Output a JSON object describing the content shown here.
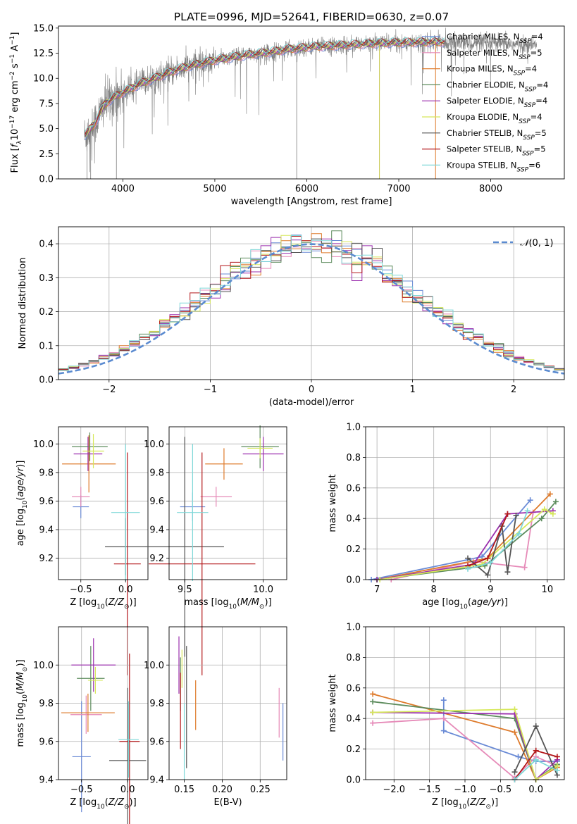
{
  "figure": {
    "title": "PLATE=0996, MJD=52641, FIBERID=0630, z=0.07",
    "models": [
      {
        "name": "Chabrier MILES",
        "nssp": 4,
        "color": "#6a8bd6"
      },
      {
        "name": "Salpeter MILES",
        "nssp": 5,
        "color": "#e68ab8"
      },
      {
        "name": "Kroupa MILES",
        "nssp": 4,
        "color": "#de7b2c"
      },
      {
        "name": "Chabrier ELODIE",
        "nssp": 4,
        "color": "#5d8c5d"
      },
      {
        "name": "Salpeter ELODIE",
        "nssp": 4,
        "color": "#9b2fae"
      },
      {
        "name": "Kroupa ELODIE",
        "nssp": 4,
        "color": "#d6e85a"
      },
      {
        "name": "Chabrier STELIB",
        "nssp": 5,
        "color": "#555555"
      },
      {
        "name": "Salpeter STELIB",
        "nssp": 5,
        "color": "#b3171a"
      },
      {
        "name": "Kroupa STELIB",
        "nssp": 6,
        "color": "#7fd8d8"
      }
    ],
    "legend_nssp_label": "N",
    "legend_nssp_sub": "SSP"
  },
  "chart_data": [
    {
      "id": "spectrum",
      "type": "line",
      "xlabel": "wavelength [Angstrom, rest frame]",
      "ylabel": "Flux [f_λ 10^-17 erg cm^-2 s^-1 A^-1]",
      "xlim": [
        3300,
        8800
      ],
      "ylim": [
        0,
        15.2
      ],
      "xticks": [
        4000,
        5000,
        6000,
        7000,
        8000
      ],
      "yticks": [
        0.0,
        2.5,
        5.0,
        7.5,
        10.0,
        12.5,
        15.0
      ],
      "ytick_labels": [
        "0.0",
        "2.5",
        "5.0",
        "7.5",
        "10.0",
        "12.5",
        "15.0"
      ],
      "grid": false,
      "legend": "right",
      "data_color": "#7f7f7f",
      "continuum": [
        [
          3580,
          4.2
        ],
        [
          3700,
          5.6
        ],
        [
          3800,
          7.4
        ],
        [
          3900,
          8.1
        ],
        [
          4000,
          8.6
        ],
        [
          4200,
          9.5
        ],
        [
          4400,
          10.2
        ],
        [
          4600,
          10.9
        ],
        [
          4800,
          11.4
        ],
        [
          5000,
          11.8
        ],
        [
          5200,
          12.1
        ],
        [
          5400,
          12.4
        ],
        [
          5600,
          12.6
        ],
        [
          5800,
          12.9
        ],
        [
          6000,
          13.1
        ],
        [
          6200,
          13.2
        ],
        [
          6400,
          13.3
        ],
        [
          6600,
          13.4
        ],
        [
          6800,
          13.5
        ],
        [
          7000,
          13.55
        ],
        [
          7200,
          13.6
        ],
        [
          7400,
          13.6
        ],
        [
          7600,
          13.6
        ],
        [
          7800,
          13.5
        ],
        [
          8000,
          13.5
        ],
        [
          8200,
          13.4
        ],
        [
          8400,
          13.3
        ],
        [
          8500,
          13.3
        ]
      ]
    },
    {
      "id": "residuals",
      "type": "histogram",
      "xlabel": "(data-model)/error",
      "ylabel": "Normed distribution",
      "xlim": [
        -2.5,
        2.5
      ],
      "ylim": [
        0,
        0.45
      ],
      "xticks": [
        -2,
        -1,
        0,
        1,
        2
      ],
      "yticks": [
        0.0,
        0.1,
        0.2,
        0.3,
        0.4
      ],
      "grid": true,
      "legend": "top-right",
      "normal_label": "N(0,1)",
      "normal_color": "#5b8bd0",
      "bins": 50
    },
    {
      "id": "age-vs-Z",
      "type": "errorbar",
      "xlabel": "Z [log10(Z/Z⊙)]",
      "ylabel": "age [log10(age/yr)]",
      "xlim": [
        -0.75,
        0.25
      ],
      "ylim": [
        9.05,
        10.12
      ],
      "xticks": [
        -0.5,
        0.0
      ],
      "yticks": [
        9.2,
        9.4,
        9.6,
        9.8,
        10.0
      ],
      "grid": true,
      "points": [
        {
          "model": 0,
          "x": -0.5,
          "y": 9.56,
          "xerr": 0.09,
          "yerr": 0.08
        },
        {
          "model": 1,
          "x": -0.5,
          "y": 9.63,
          "xerr": 0.1,
          "yerr": 0.07
        },
        {
          "model": 2,
          "x": -0.41,
          "y": 9.86,
          "xerr": 0.3,
          "yerr": 0.2
        },
        {
          "model": 3,
          "x": -0.4,
          "y": 9.98,
          "xerr": 0.2,
          "yerr": 0.1
        },
        {
          "model": 4,
          "x": -0.42,
          "y": 9.93,
          "xerr": 0.16,
          "yerr": 0.12
        },
        {
          "model": 5,
          "x": -0.36,
          "y": 9.95,
          "xerr": 0.12,
          "yerr": 0.12
        },
        {
          "model": 6,
          "x": 0.0,
          "y": 9.28,
          "xerr": 0.23,
          "yerr": 0.2
        },
        {
          "model": 7,
          "x": 0.02,
          "y": 9.16,
          "xerr": 0.15,
          "yerr": 0.78
        },
        {
          "model": 8,
          "x": 0.0,
          "y": 9.52,
          "xerr": 0.16,
          "yerr": 0.48
        }
      ]
    },
    {
      "id": "age-vs-mass",
      "type": "errorbar",
      "xlabel": "mass [log10(M/M⊙)]",
      "ylabel": "",
      "xlim": [
        9.4,
        10.15
      ],
      "ylim": [
        9.05,
        10.12
      ],
      "xticks": [
        9.5,
        10.0
      ],
      "yticks": [
        9.2,
        9.4,
        9.6,
        9.8,
        10.0
      ],
      "grid": true,
      "points": [
        {
          "model": 0,
          "x": 9.55,
          "y": 9.56,
          "xerr": 0.08,
          "yerr": 0.1
        },
        {
          "model": 1,
          "x": 9.7,
          "y": 9.63,
          "xerr": 0.1,
          "yerr": 0.07
        },
        {
          "model": 2,
          "x": 9.75,
          "y": 9.86,
          "xerr": 0.12,
          "yerr": 0.11
        },
        {
          "model": 3,
          "x": 9.98,
          "y": 9.98,
          "xerr": 0.12,
          "yerr": 0.15
        },
        {
          "model": 4,
          "x": 10.0,
          "y": 9.93,
          "xerr": 0.13,
          "yerr": 0.12
        },
        {
          "model": 5,
          "x": 9.98,
          "y": 9.97,
          "xerr": 0.08,
          "yerr": 0.07
        },
        {
          "model": 6,
          "x": 9.5,
          "y": 9.28,
          "xerr": 0.25,
          "yerr": 0.77
        },
        {
          "model": 7,
          "x": 9.61,
          "y": 9.16,
          "xerr": 0.34,
          "yerr": 0.78
        },
        {
          "model": 8,
          "x": 9.55,
          "y": 9.52,
          "xerr": 0.1,
          "yerr": 0.48
        }
      ]
    },
    {
      "id": "weight-vs-age",
      "type": "line",
      "xlabel": "age [log10(age/yr)]",
      "ylabel": "mass weight",
      "xlim": [
        6.8,
        10.3
      ],
      "ylim": [
        0,
        1
      ],
      "xticks": [
        7,
        8,
        9,
        10
      ],
      "yticks": [
        0.0,
        0.2,
        0.4,
        0.6,
        0.8,
        1.0
      ],
      "grid": true,
      "series": [
        {
          "model": 0,
          "points": [
            [
              6.9,
              0.0
            ],
            [
              8.85,
              0.15
            ],
            [
              9.7,
              0.52
            ]
          ]
        },
        {
          "model": 1,
          "points": [
            [
              7.25,
              0.0
            ],
            [
              8.7,
              0.12
            ],
            [
              9.6,
              0.08
            ],
            [
              9.75,
              0.44
            ]
          ]
        },
        {
          "model": 2,
          "points": [
            [
              7.0,
              0.0
            ],
            [
              8.95,
              0.14
            ],
            [
              10.05,
              0.56
            ]
          ]
        },
        {
          "model": 3,
          "points": [
            [
              7.0,
              0.0
            ],
            [
              8.9,
              0.09
            ],
            [
              9.9,
              0.4
            ],
            [
              10.15,
              0.51
            ]
          ]
        },
        {
          "model": 4,
          "points": [
            [
              7.0,
              0.0
            ],
            [
              8.7,
              0.1
            ],
            [
              9.3,
              0.43
            ],
            [
              10.1,
              0.45
            ]
          ]
        },
        {
          "model": 5,
          "points": [
            [
              7.05,
              0.0
            ],
            [
              8.85,
              0.1
            ],
            [
              9.95,
              0.46
            ],
            [
              10.1,
              0.43
            ]
          ]
        },
        {
          "model": 6,
          "points": [
            [
              8.6,
              0.14
            ],
            [
              8.95,
              0.03
            ],
            [
              9.2,
              0.35
            ],
            [
              9.3,
              0.05
            ],
            [
              9.45,
              0.42
            ]
          ]
        },
        {
          "model": 7,
          "points": [
            [
              8.6,
              0.09
            ],
            [
              8.95,
              0.14
            ],
            [
              9.3,
              0.43
            ]
          ]
        },
        {
          "model": 8,
          "points": [
            [
              8.6,
              0.07
            ],
            [
              9.0,
              0.11
            ],
            [
              9.5,
              0.3
            ],
            [
              9.65,
              0.45
            ]
          ]
        }
      ]
    },
    {
      "id": "mass-vs-Z",
      "type": "errorbar",
      "xlabel": "Z [log10(Z/Z⊙)]",
      "ylabel": "mass [log10(M/M⊙)]",
      "xlim": [
        -0.75,
        0.22
      ],
      "ylim": [
        9.4,
        10.2
      ],
      "xticks": [
        -0.5,
        0.0
      ],
      "yticks": [
        9.4,
        9.6,
        9.8,
        10.0
      ],
      "grid": true,
      "points": [
        {
          "model": 0,
          "x": -0.5,
          "y": 9.52,
          "xerr": 0.1,
          "yerr": 0.29
        },
        {
          "model": 1,
          "x": -0.45,
          "y": 9.74,
          "xerr": 0.17,
          "yerr": 0.1
        },
        {
          "model": 2,
          "x": -0.43,
          "y": 9.75,
          "xerr": 0.29,
          "yerr": 0.1
        },
        {
          "model": 3,
          "x": -0.4,
          "y": 9.93,
          "xerr": 0.15,
          "yerr": 0.17
        },
        {
          "model": 4,
          "x": -0.37,
          "y": 10.0,
          "xerr": 0.24,
          "yerr": 0.14
        },
        {
          "model": 5,
          "x": -0.35,
          "y": 9.92,
          "xerr": 0.08,
          "yerr": 0.07
        },
        {
          "model": 6,
          "x": 0.0,
          "y": 9.5,
          "xerr": 0.2,
          "yerr": 0.38
        },
        {
          "model": 7,
          "x": 0.02,
          "y": 9.6,
          "xerr": 0.11,
          "yerr": 0.46
        },
        {
          "model": 8,
          "x": 0.01,
          "y": 9.61,
          "xerr": 0.11,
          "yerr": 0.2
        }
      ]
    },
    {
      "id": "mass-vs-ebv",
      "type": "errorbar",
      "xlabel": "E(B-V)",
      "ylabel": "",
      "xlim": [
        0.13,
        0.285
      ],
      "ylim": [
        9.4,
        10.2
      ],
      "xticks": [
        0.15,
        0.2,
        0.25
      ],
      "yticks": [
        9.4,
        9.6,
        9.8,
        10.0
      ],
      "grid": true,
      "points": [
        {
          "model": 0,
          "x": 0.28,
          "y": 9.65,
          "xerr": 0.0,
          "yerr": 0.15
        },
        {
          "model": 1,
          "x": 0.275,
          "y": 9.75,
          "xerr": 0.0,
          "yerr": 0.13
        },
        {
          "model": 2,
          "x": 0.165,
          "y": 9.79,
          "xerr": 0.0,
          "yerr": 0.13
        },
        {
          "model": 3,
          "x": 0.145,
          "y": 9.9,
          "xerr": 0.0,
          "yerr": 0.14
        },
        {
          "model": 4,
          "x": 0.143,
          "y": 10.0,
          "xerr": 0.0,
          "yerr": 0.15
        },
        {
          "model": 5,
          "x": 0.147,
          "y": 9.98,
          "xerr": 0.0,
          "yerr": 0.1
        },
        {
          "model": 6,
          "x": 0.153,
          "y": 9.78,
          "xerr": 0.0,
          "yerr": 0.32
        },
        {
          "model": 7,
          "x": 0.145,
          "y": 9.76,
          "xerr": 0.0,
          "yerr": 0.2
        },
        {
          "model": 8,
          "x": 0.15,
          "y": 9.6,
          "xerr": 0.0,
          "yerr": 0.2
        }
      ]
    },
    {
      "id": "weight-vs-Z",
      "type": "line",
      "xlabel": "Z [log10(Z/Z⊙)]",
      "ylabel": "mass weight",
      "xlim": [
        -2.4,
        0.4
      ],
      "ylim": [
        0,
        1
      ],
      "xticks": [
        -2.0,
        -1.5,
        -1.0,
        -0.5,
        0.0
      ],
      "xtick_labels": [
        "−2.0",
        "−1.5",
        "−1.0",
        "−0.5",
        "0.0"
      ],
      "yticks": [
        0.0,
        0.2,
        0.4,
        0.6,
        0.8,
        1.0
      ],
      "grid": true,
      "series": [
        {
          "model": 0,
          "points": [
            [
              -1.3,
              0.52
            ],
            [
              -1.3,
              0.32
            ],
            [
              -0.25,
              0.15
            ],
            [
              0.0,
              0.12
            ],
            [
              0.3,
              0.12
            ]
          ]
        },
        {
          "model": 1,
          "points": [
            [
              -2.3,
              0.37
            ],
            [
              -1.3,
              0.4
            ],
            [
              -0.3,
              0.01
            ],
            [
              0.0,
              0.15
            ],
            [
              0.3,
              0.09
            ]
          ]
        },
        {
          "model": 2,
          "points": [
            [
              -2.3,
              0.56
            ],
            [
              -0.3,
              0.31
            ],
            [
              0.0,
              0.0
            ],
            [
              0.3,
              0.08
            ]
          ]
        },
        {
          "model": 3,
          "points": [
            [
              -2.3,
              0.51
            ],
            [
              -0.3,
              0.4
            ],
            [
              0.0,
              0.0
            ],
            [
              0.3,
              0.1
            ]
          ]
        },
        {
          "model": 4,
          "points": [
            [
              -2.3,
              0.44
            ],
            [
              -0.3,
              0.43
            ],
            [
              0.0,
              0.0
            ],
            [
              0.3,
              0.13
            ]
          ]
        },
        {
          "model": 5,
          "points": [
            [
              -2.3,
              0.44
            ],
            [
              -0.3,
              0.46
            ],
            [
              0.0,
              0.0
            ],
            [
              0.3,
              0.09
            ]
          ]
        },
        {
          "model": 6,
          "points": [
            [
              -0.3,
              0.05
            ],
            [
              0.0,
              0.35
            ],
            [
              0.3,
              0.03
            ]
          ]
        },
        {
          "model": 7,
          "points": [
            [
              -0.3,
              0.0
            ],
            [
              0.0,
              0.19
            ],
            [
              0.3,
              0.15
            ]
          ]
        },
        {
          "model": 8,
          "points": [
            [
              -0.3,
              0.0
            ],
            [
              0.0,
              0.13
            ],
            [
              0.3,
              0.06
            ]
          ]
        }
      ]
    }
  ]
}
